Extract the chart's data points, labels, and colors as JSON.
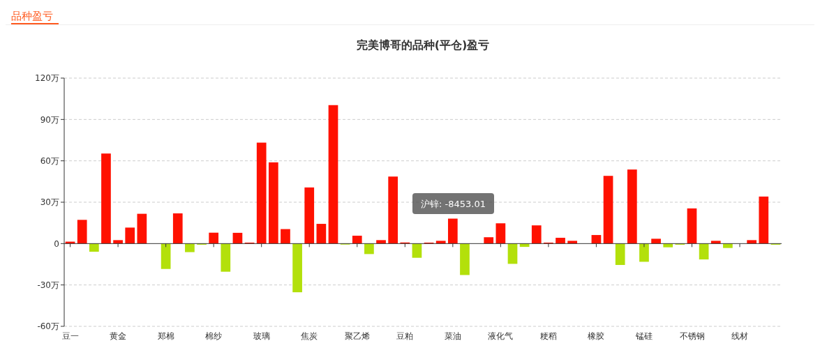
{
  "chart_data": {
    "type": "bar",
    "title": "完美博哥的品种(平仓)盈亏",
    "annotations": [
      "品种盈亏",
      "沪锌: -8453.01"
    ],
    "categories": [
      "豆一",
      null,
      null,
      null,
      "黄金",
      null,
      null,
      null,
      "郑棉",
      null,
      null,
      null,
      "棉纱",
      null,
      null,
      null,
      "玻璃",
      null,
      null,
      null,
      "焦炭",
      null,
      null,
      null,
      "聚乙烯",
      null,
      null,
      null,
      "豆粕",
      null,
      null,
      null,
      "菜油",
      null,
      null,
      null,
      "液化气",
      null,
      null,
      null,
      "粳稻",
      null,
      null,
      null,
      "橡胶",
      null,
      null,
      null,
      "锰硅",
      null,
      null,
      null,
      "不锈钢",
      null,
      null,
      null,
      "线材",
      null,
      null,
      null
    ],
    "values": [
      1.4,
      17.2,
      -5.9,
      65.3,
      2.5,
      11.6,
      21.6,
      null,
      -18.4,
      21.9,
      -6.2,
      -0.8,
      7.9,
      -20.4,
      7.8,
      0.7,
      73.2,
      58.9,
      10.5,
      -35.3,
      40.7,
      14.3,
      100.4,
      -0.7,
      5.7,
      -7.6,
      2.5,
      48.6,
      0.8,
      -10.3,
      0.7,
      2.0,
      18.1,
      -22.8,
      null,
      4.6,
      14.7,
      -14.7,
      -2.4,
      13.2,
      0.7,
      4.2,
      2.0,
      null,
      6.2,
      49.1,
      -15.5,
      53.7,
      -13.2,
      3.5,
      -2.7,
      -0.8,
      25.5,
      -11.5,
      2.0,
      -3.2,
      null,
      2.5,
      34.1,
      -0.8
    ],
    "colors": [
      "#ff1100",
      "#ff1100",
      "#b3e00b",
      "#ff1100",
      "#ff1100",
      "#ff1100",
      "#ff1100",
      null,
      "#b3e00b",
      "#ff1100",
      "#b3e00b",
      "#b3e00b",
      "#ff1100",
      "#b3e00b",
      "#ff1100",
      "#ff1100",
      "#ff1100",
      "#ff1100",
      "#ff1100",
      "#b3e00b",
      "#ff1100",
      "#ff1100",
      "#ff1100",
      "#b3e00b",
      "#ff1100",
      "#b3e00b",
      "#ff1100",
      "#ff1100",
      "#ff1100",
      "#b3e00b",
      "#ff1100",
      "#ff1100",
      "#ff1100",
      "#b3e00b",
      null,
      "#ff1100",
      "#ff1100",
      "#b3e00b",
      "#b3e00b",
      "#ff1100",
      "#ff1100",
      "#ff1100",
      "#ff1100",
      null,
      "#ff1100",
      "#ff1100",
      "#b3e00b",
      "#ff1100",
      "#b3e00b",
      "#ff1100",
      "#b3e00b",
      "#b3e00b",
      "#ff1100",
      "#b3e00b",
      "#ff1100",
      "#b3e00b",
      null,
      "#ff1100",
      "#ff1100",
      "#b3e00b"
    ],
    "ylim": [
      -60,
      120
    ],
    "yticks": [
      {
        "value": -60,
        "label": "-60万"
      },
      {
        "value": -30,
        "label": "-30万"
      },
      0,
      {
        "value": 30,
        "label": "30万"
      },
      {
        "value": 60,
        "label": "60万"
      },
      {
        "value": 90,
        "label": "90万"
      },
      {
        "value": 120,
        "label": "120万"
      }
    ],
    "grid": "y"
  }
}
